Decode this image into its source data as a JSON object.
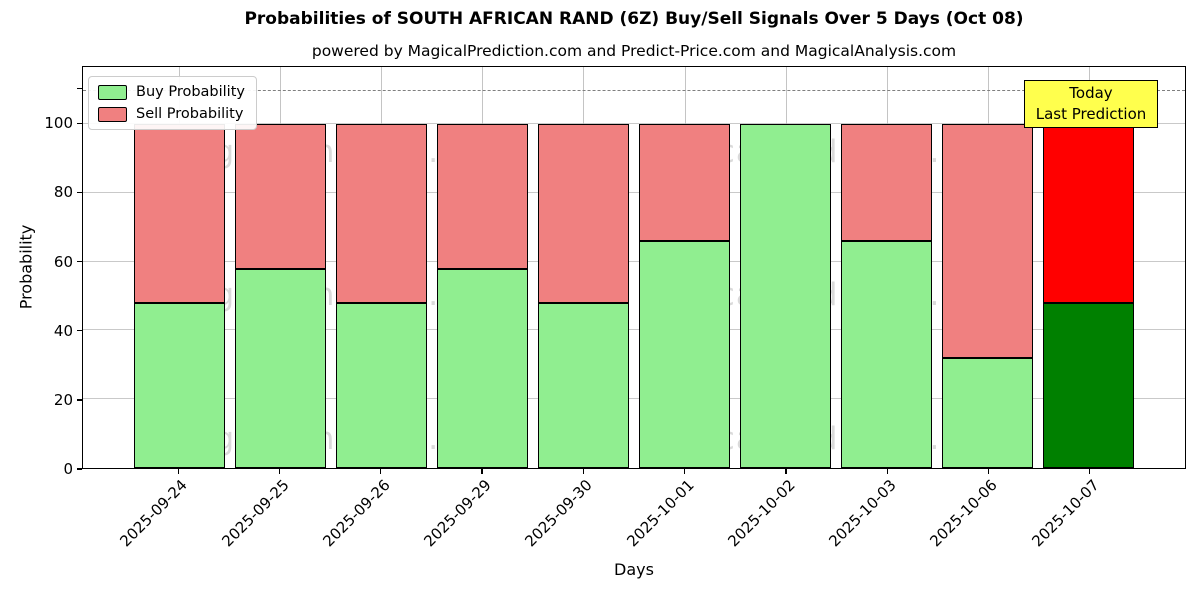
{
  "title": "Probabilities of SOUTH AFRICAN RAND (6Z) Buy/Sell Signals Over 5 Days (Oct 08)",
  "subtitle": "powered by MagicalPrediction.com and Predict-Price.com and MagicalAnalysis.com",
  "axes": {
    "xlabel": "Days",
    "ylabel": "Probability",
    "yticks": [
      0,
      20,
      40,
      60,
      80,
      100
    ],
    "ymax": 116.6,
    "dashed_line_y": 110
  },
  "legend": {
    "items": [
      {
        "label": "Buy Probability",
        "color": "#90ee90"
      },
      {
        "label": "Sell Probability",
        "color": "#f08080"
      }
    ]
  },
  "annotation": {
    "line1": "Today",
    "line2": "Last Prediction",
    "bg_color": "#ffff4d"
  },
  "watermarks": [
    "MagicalAnalysis.com",
    "MagicalPrediction.com"
  ],
  "colors": {
    "buy": "#90ee90",
    "sell": "#f08080",
    "buy_today": "#008000",
    "sell_today": "#ff0000",
    "grid": "#c9c9c9",
    "dashed_line": "#7f7f7f",
    "annotation_bg": "#ffff4d"
  },
  "chart_data": {
    "type": "bar",
    "stacked": true,
    "title": "Probabilities of SOUTH AFRICAN RAND (6Z) Buy/Sell Signals Over 5 Days (Oct 08)",
    "xlabel": "Days",
    "ylabel": "Probability",
    "ylim": [
      0,
      116.6
    ],
    "yticks": [
      0,
      20,
      40,
      60,
      80,
      100
    ],
    "grid": true,
    "legend_position": "upper left",
    "dashed_reference_line_y": 110,
    "categories": [
      "2025-09-24",
      "2025-09-25",
      "2025-09-26",
      "2025-09-29",
      "2025-09-30",
      "2025-10-01",
      "2025-10-02",
      "2025-10-03",
      "2025-10-06",
      "2025-10-07"
    ],
    "series": [
      {
        "name": "Buy Probability",
        "color": "#90ee90",
        "values": [
          48,
          58,
          48,
          58,
          48,
          66,
          100,
          66,
          32,
          48
        ]
      },
      {
        "name": "Sell Probability",
        "color": "#f08080",
        "values": [
          52,
          42,
          52,
          42,
          52,
          34,
          0,
          34,
          68,
          52
        ]
      }
    ],
    "last_bar_highlight": {
      "buy_color": "#008000",
      "sell_color": "#ff0000",
      "label": "Today / Last Prediction"
    }
  }
}
